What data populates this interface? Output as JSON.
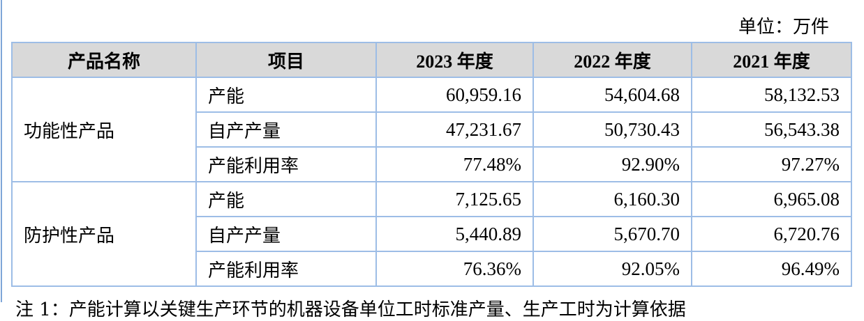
{
  "unit_label": "单位：万件",
  "headers": [
    "产品名称",
    "项目",
    "2023 年度",
    "2022 年度",
    "2021 年度"
  ],
  "groups": [
    {
      "product": "功能性产品",
      "rows": [
        {
          "item": "产能",
          "values": [
            "60,959.16",
            "54,604.68",
            "58,132.53"
          ]
        },
        {
          "item": "自产产量",
          "values": [
            "47,231.67",
            "50,730.43",
            "56,543.38"
          ]
        },
        {
          "item": "产能利用率",
          "values": [
            "77.48%",
            "92.90%",
            "97.27%"
          ]
        }
      ]
    },
    {
      "product": "防护性产品",
      "rows": [
        {
          "item": "产能",
          "values": [
            "7,125.65",
            "6,160.30",
            "6,965.08"
          ]
        },
        {
          "item": "自产产量",
          "values": [
            "5,440.89",
            "5,670.70",
            "6,720.76"
          ]
        },
        {
          "item": "产能利用率",
          "values": [
            "76.36%",
            "92.05%",
            "96.49%"
          ]
        }
      ]
    }
  ],
  "note": "注 1：产能计算以关键生产环节的机器设备单位工时标准产量、生产工时为计算依据"
}
